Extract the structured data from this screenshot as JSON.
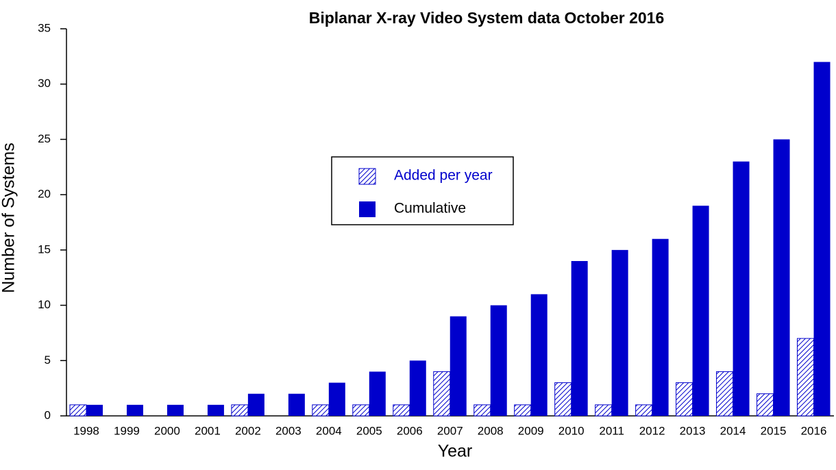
{
  "chart_data": {
    "type": "bar",
    "title": "Biplanar X-ray Video System data October 2016",
    "x_label": "Year",
    "y_label": "Number of  Systems",
    "categories": [
      "1998",
      "1999",
      "2000",
      "2001",
      "2002",
      "2003",
      "2004",
      "2005",
      "2006",
      "2007",
      "2008",
      "2009",
      "2010",
      "2011",
      "2012",
      "2013",
      "2014",
      "2015",
      "2016"
    ],
    "series": [
      {
        "name": "Added per year",
        "color": "#0000cc",
        "hatch": true,
        "values": [
          1,
          0,
          0,
          0,
          1,
          0,
          1,
          1,
          1,
          4,
          1,
          1,
          3,
          1,
          1,
          3,
          4,
          2,
          7
        ]
      },
      {
        "name": "Cumulative",
        "color": "#0000cc",
        "hatch": false,
        "values": [
          1,
          1,
          1,
          1,
          2,
          2,
          3,
          4,
          5,
          9,
          10,
          11,
          14,
          15,
          16,
          19,
          23,
          25,
          32
        ]
      }
    ],
    "ylim": [
      0,
      35
    ],
    "yticks": [
      0,
      5,
      10,
      15,
      20,
      25,
      30,
      35
    ],
    "grid": false
  }
}
